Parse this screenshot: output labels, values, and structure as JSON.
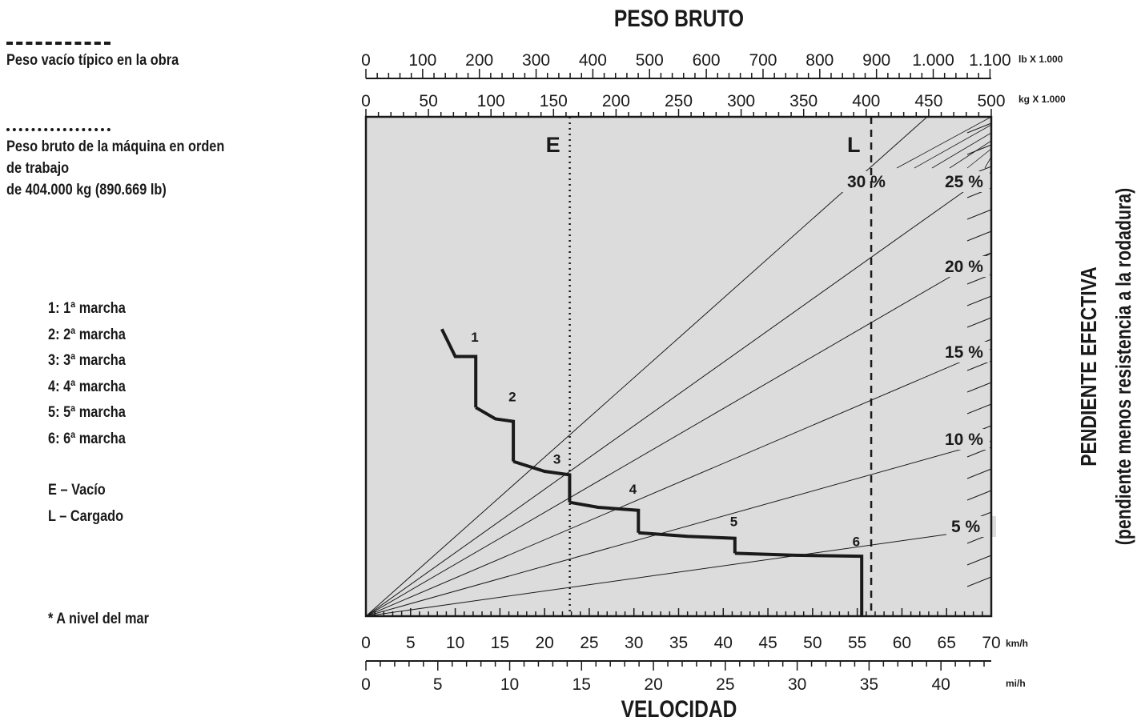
{
  "legend": {
    "empty_weight_label": "Peso vacío típico en la obra",
    "gross_weight_label_1": "Peso bruto de la máquina en orden",
    "gross_weight_label_2": "de trabajo",
    "gross_weight_label_3": "de 404.000 kg (890.669 lb)",
    "gears": [
      "1: 1ª marcha",
      "2: 2ª marcha",
      "3: 3ª marcha",
      "4: 4ª marcha",
      "5: 5ª marcha",
      "6: 6ª marcha"
    ],
    "empty_key": "E – Vacío",
    "loaded_key": "L – Cargado",
    "sea_level_note": "* A nivel del mar"
  },
  "colors": {
    "plot_bg": "#dcdcdc",
    "ink": "#1a1a1a"
  },
  "chart_data": {
    "type": "line",
    "title": "PESO BRUTO",
    "xlabel": "VELOCIDAD",
    "right_title": "PENDIENTE EFECTIVA",
    "right_subtitle": "(pendiente menos resistencia a la rodadura)",
    "grid": false,
    "x_kmh": {
      "unit": "km/h",
      "range": [
        0,
        70
      ],
      "ticks": [
        "0",
        "5",
        "10",
        "15",
        "20",
        "25",
        "30",
        "35",
        "40",
        "45",
        "50",
        "55",
        "60",
        "65",
        "70"
      ]
    },
    "x_mph": {
      "unit": "mi/h",
      "range": [
        0,
        43.5
      ],
      "ticks": [
        "0",
        "5",
        "10",
        "15",
        "20",
        "25",
        "30",
        "35",
        "40"
      ]
    },
    "weight_kg": {
      "unit": "kg X 1.000",
      "range": [
        0,
        500
      ],
      "ticks": [
        "0",
        "50",
        "100",
        "150",
        "200",
        "250",
        "300",
        "350",
        "400",
        "450",
        "500"
      ]
    },
    "weight_lb": {
      "unit": "lb X 1.000",
      "range": [
        0,
        1102.3
      ],
      "ticks": [
        "0",
        "100",
        "200",
        "300",
        "400",
        "500",
        "600",
        "700",
        "800",
        "900",
        "1.000",
        "1.100"
      ]
    },
    "reference_lines": [
      {
        "label": "E",
        "style": "dotted",
        "weight_kg": 163
      },
      {
        "label": "L",
        "style": "dashed",
        "weight_kg": 404
      }
    ],
    "grade_lines": [
      {
        "label": "5 %",
        "grade": 5
      },
      {
        "label": "10 %",
        "grade": 10
      },
      {
        "label": "15 %",
        "grade": 15
      },
      {
        "label": "20 %",
        "grade": 20
      },
      {
        "label": "25 %",
        "grade": 25
      },
      {
        "label": "30 %",
        "grade": 30
      }
    ],
    "rimpull_rel_range": [
      0,
      1
    ],
    "gears": [
      {
        "label": "1",
        "points": [
          [
            8.5,
            0.575
          ],
          [
            10.0,
            0.52
          ],
          [
            12.3,
            0.52
          ],
          [
            12.3,
            0.418
          ]
        ]
      },
      {
        "label": "2",
        "points": [
          [
            12.3,
            0.418
          ],
          [
            14.5,
            0.395
          ],
          [
            16.5,
            0.39
          ],
          [
            16.5,
            0.31
          ]
        ]
      },
      {
        "label": "3",
        "points": [
          [
            16.5,
            0.31
          ],
          [
            20.0,
            0.29
          ],
          [
            22.8,
            0.283
          ],
          [
            22.8,
            0.228
          ]
        ]
      },
      {
        "label": "4",
        "points": [
          [
            22.8,
            0.228
          ],
          [
            26.0,
            0.218
          ],
          [
            30.5,
            0.212
          ],
          [
            30.5,
            0.167
          ]
        ]
      },
      {
        "label": "5",
        "points": [
          [
            30.5,
            0.167
          ],
          [
            36.0,
            0.16
          ],
          [
            41.3,
            0.156
          ],
          [
            41.3,
            0.126
          ]
        ]
      },
      {
        "label": "6",
        "points": [
          [
            41.3,
            0.126
          ],
          [
            48.0,
            0.122
          ],
          [
            55.5,
            0.12
          ],
          [
            55.5,
            0.0
          ]
        ]
      }
    ],
    "gear_label_positions": [
      [
        12.3,
        0.55
      ],
      [
        16.5,
        0.43
      ],
      [
        21.5,
        0.305
      ],
      [
        30.0,
        0.245
      ],
      [
        41.3,
        0.18
      ],
      [
        55.0,
        0.14
      ]
    ]
  }
}
